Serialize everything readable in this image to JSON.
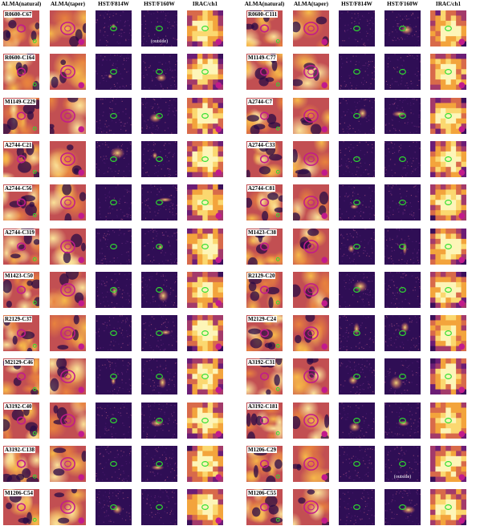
{
  "panels": [
    {
      "columns": [
        "ALMA(natural)",
        "ALMA(taper)",
        "HST/F814W",
        "HST/F160W",
        "IRAC/ch1"
      ],
      "rows": [
        {
          "id": "R0600-C67",
          "note": {
            "col": 3,
            "text": "(outside)"
          }
        },
        {
          "id": "R0600-C164"
        },
        {
          "id": "M1149-C229"
        },
        {
          "id": "A2744-C21"
        },
        {
          "id": "A2744-C56"
        },
        {
          "id": "A2744-C319"
        },
        {
          "id": "M1423-C50"
        },
        {
          "id": "R2129-C37"
        },
        {
          "id": "M2129-C46"
        },
        {
          "id": "A3192-C40"
        },
        {
          "id": "A3192-C138"
        },
        {
          "id": "M1206-C54"
        }
      ]
    },
    {
      "columns": [
        "ALMA(natural)",
        "ALMA(taper)",
        "HST/F814W",
        "HST/F160W",
        "IRAC/ch1"
      ],
      "rows": [
        {
          "id": "R0600-C111"
        },
        {
          "id": "M1149-C77"
        },
        {
          "id": "A2744-C7"
        },
        {
          "id": "A2744-C33"
        },
        {
          "id": "A2744-C81"
        },
        {
          "id": "M1423-C38"
        },
        {
          "id": "R2129-C20"
        },
        {
          "id": "M2129-C24"
        },
        {
          "id": "A3192-C31"
        },
        {
          "id": "A3192-C181"
        },
        {
          "id": "M1206-C29",
          "note": {
            "col": 3,
            "text": "(outside)"
          }
        },
        {
          "id": "M1206-C55"
        }
      ]
    }
  ],
  "colors": {
    "contour_alma": "#c21a8c",
    "contour_green": "#2ee02e",
    "beam": "#c21a8c",
    "tile_border": "#ffffff"
  }
}
